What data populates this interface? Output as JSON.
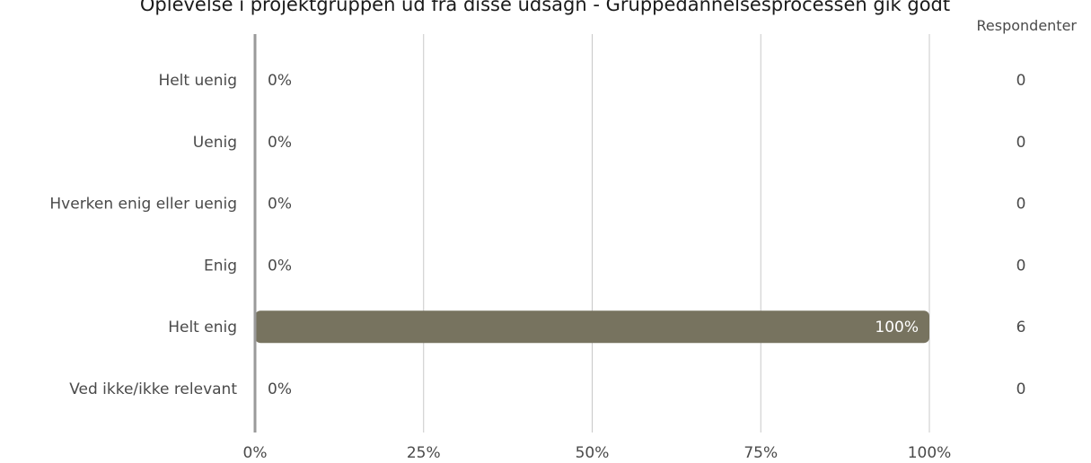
{
  "chart_data": {
    "type": "bar",
    "orientation": "horizontal",
    "title": "Oplevelse i projektgruppen ud fra disse udsagn - Gruppedannelsesprocessen gik godt",
    "respondents_header": "Respondenter",
    "categories": [
      "Helt uenig",
      "Uenig",
      "Hverken enig eller uenig",
      "Enig",
      "Helt enig",
      "Ved ikke/ikke relevant"
    ],
    "values": [
      0,
      0,
      0,
      0,
      100,
      0
    ],
    "value_labels": [
      "0%",
      "0%",
      "0%",
      "0%",
      "100%",
      "0%"
    ],
    "respondents": [
      "0",
      "0",
      "0",
      "0",
      "6",
      "0"
    ],
    "xlim": [
      0,
      100
    ],
    "xticks": [
      0,
      25,
      50,
      75,
      100
    ],
    "xtick_labels": [
      "0%",
      "25%",
      "50%",
      "75%",
      "100%"
    ],
    "grid": true,
    "bar_color": "#77735f"
  }
}
